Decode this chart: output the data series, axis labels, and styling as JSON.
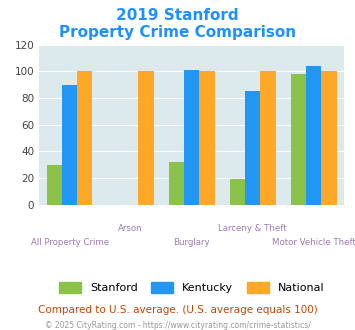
{
  "title_line1": "2019 Stanford",
  "title_line2": "Property Crime Comparison",
  "categories": [
    "All Property Crime",
    "Arson",
    "Burglary",
    "Larceny & Theft",
    "Motor Vehicle Theft"
  ],
  "stanford": [
    30,
    0,
    32,
    19,
    98
  ],
  "kentucky": [
    90,
    0,
    101,
    85,
    104
  ],
  "national": [
    100,
    100,
    100,
    100,
    100
  ],
  "stanford_color": "#8bc34a",
  "kentucky_color": "#2196f3",
  "national_color": "#ffa726",
  "bg_color": "#dce9ed",
  "ylim": [
    0,
    120
  ],
  "yticks": [
    0,
    20,
    40,
    60,
    80,
    100,
    120
  ],
  "footnote1": "Compared to U.S. average. (U.S. average equals 100)",
  "footnote2": "© 2025 CityRating.com - https://www.cityrating.com/crime-statistics/",
  "title_color": "#1e90ff",
  "xlabel_color": "#9b7bb0",
  "footnote1_color": "#cc4400",
  "footnote2_color": "#999999",
  "legend_labels": [
    "Stanford",
    "Kentucky",
    "National"
  ],
  "bar_width": 0.25,
  "upper_label_indices": [
    1,
    3
  ],
  "lower_label_indices": [
    0,
    2,
    4
  ]
}
